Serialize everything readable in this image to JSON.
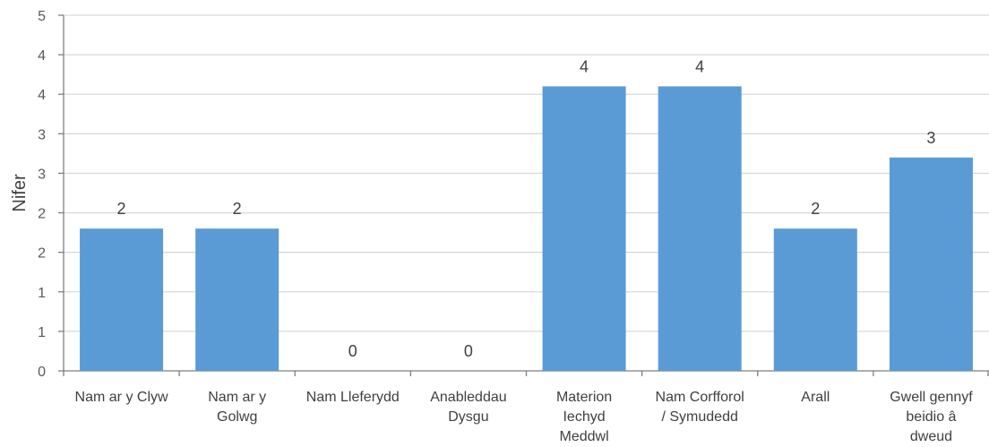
{
  "chart_data": {
    "type": "bar",
    "title": "",
    "xlabel": "",
    "ylabel": "Nifer",
    "categories": [
      [
        "Nam ar y Clyw"
      ],
      [
        "Nam ar y",
        "Golwg"
      ],
      [
        "Nam Lleferydd"
      ],
      [
        "Anableddau",
        "Dysgu"
      ],
      [
        "Materion",
        "Iechyd",
        "Meddwl"
      ],
      [
        "Nam Corfforol",
        "/ Symudedd"
      ],
      [
        "Arall"
      ],
      [
        "Gwell gennyf",
        "beidio â",
        "dweud"
      ]
    ],
    "values": [
      2,
      2,
      0,
      0,
      4,
      4,
      2,
      3
    ],
    "ylim": [
      0,
      5
    ],
    "yticks": [
      "0",
      "1",
      "1",
      "2",
      "2",
      "3",
      "3",
      "4",
      "4",
      "5"
    ],
    "grid": true,
    "legend": "none",
    "colors": {
      "bar": "#5B9BD5",
      "grid": "#D9D9D9",
      "axis": "#7F7F7F"
    }
  }
}
